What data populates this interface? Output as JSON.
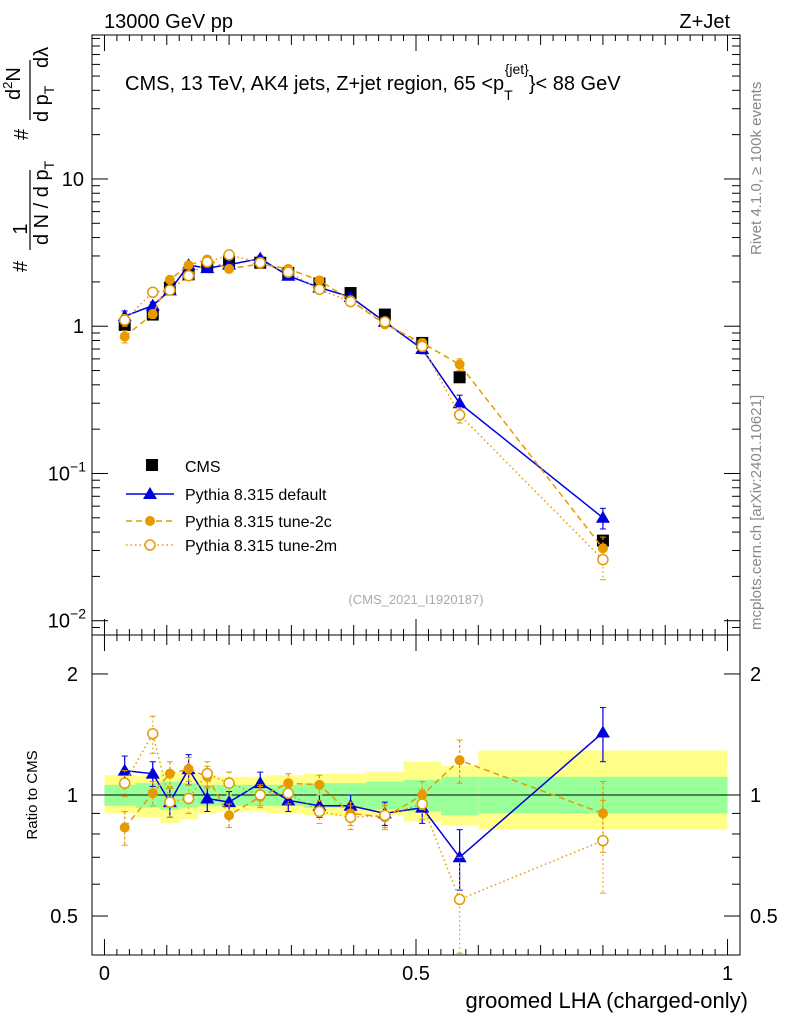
{
  "header": {
    "left": "13000 GeV pp",
    "right": "Z+Jet",
    "title_main": "CMS, 13 TeV, AK4 jets, Z+jet region, 65 <p",
    "title_sup": "{jet}",
    "title_sub": "T",
    "title_tail": "}< 88 GeV",
    "side_rivet": "Rivet 4.1.0, ≥ 100k events",
    "side_mcplots": "mcplots.cern.ch [arXiv:2401.10621]",
    "analysis_id": "(CMS_2021_I1920187)"
  },
  "ylabel_top": {
    "hash": "#",
    "frac_num": "1",
    "frac_den": "d N / d p",
    "frac_den_sub": "T",
    "hash2": "#",
    "dp": "d p",
    "dp_sub": "T",
    "d2n": "d",
    "d2n_sup": "2",
    "d2n_tail": "N",
    "dlambda": "dλ"
  },
  "chart_data": [
    {
      "type": "line",
      "panel": "main",
      "yscale": "log",
      "ylim": [
        0.008,
        95
      ],
      "xlim": [
        -0.02,
        1.02
      ],
      "y_tick_labels": [
        {
          "value": 0.01,
          "base": "10",
          "exp": "−2"
        },
        {
          "value": 0.1,
          "base": "10",
          "exp": "−1"
        },
        {
          "value": 1,
          "base": "1",
          "exp": ""
        },
        {
          "value": 10,
          "base": "10",
          "exp": ""
        }
      ],
      "x": [
        0.0325,
        0.0775,
        0.105,
        0.135,
        0.165,
        0.2,
        0.25,
        0.295,
        0.345,
        0.395,
        0.45,
        0.51,
        0.57,
        0.8
      ],
      "series": [
        {
          "name": "CMS",
          "style": "data",
          "color": "#000000",
          "values": [
            1.02,
            1.2,
            1.83,
            2.25,
            2.55,
            2.75,
            2.7,
            2.3,
            1.95,
            1.68,
            1.2,
            0.77,
            0.45,
            0.035
          ]
        },
        {
          "name": "Pythia 8.315 default",
          "style": "solid",
          "color": "#0000dd",
          "values": [
            1.17,
            1.38,
            1.75,
            2.6,
            2.48,
            2.62,
            2.88,
            2.2,
            1.83,
            1.58,
            1.07,
            0.7,
            0.3,
            0.05
          ],
          "errors": [
            0.1,
            0.08,
            0.1,
            0.12,
            0.1,
            0.1,
            0.12,
            0.1,
            0.08,
            0.06,
            0.05,
            0.05,
            0.04,
            0.008
          ]
        },
        {
          "name": "Pythia 8.315 tune-2c",
          "style": "dashed",
          "color": "#e69a00",
          "values": [
            0.85,
            1.21,
            2.07,
            2.6,
            2.84,
            2.45,
            2.65,
            2.45,
            2.05,
            1.5,
            1.03,
            0.77,
            0.55,
            0.031
          ],
          "errors": [
            0.08,
            0.08,
            0.1,
            0.1,
            0.1,
            0.1,
            0.1,
            0.1,
            0.08,
            0.06,
            0.05,
            0.05,
            0.05,
            0.006
          ]
        },
        {
          "name": "Pythia 8.315 tune-2m",
          "style": "dotted",
          "color": "#e69a00",
          "values": [
            1.1,
            1.7,
            1.76,
            2.2,
            2.73,
            3.05,
            2.7,
            2.33,
            1.78,
            1.47,
            1.07,
            0.73,
            0.25,
            0.026
          ],
          "errors": [
            0.1,
            0.12,
            0.1,
            0.1,
            0.12,
            0.12,
            0.1,
            0.1,
            0.08,
            0.06,
            0.05,
            0.05,
            0.03,
            0.007
          ]
        }
      ],
      "legend": [
        "CMS",
        "Pythia 8.315 default",
        "Pythia 8.315 tune-2c",
        "Pythia 8.315 tune-2m"
      ],
      "legend_placement": "bottom-left"
    },
    {
      "type": "line",
      "panel": "ratio",
      "ylabel": "Ratio to CMS",
      "xlabel": "groomed LHA (charged-only)",
      "yscale": "log",
      "ylim": [
        0.4,
        2.5
      ],
      "y_tick_labels": [
        {
          "value": 0.5,
          "label": "0.5"
        },
        {
          "value": 1,
          "label": "1"
        },
        {
          "value": 2,
          "label": "2"
        }
      ],
      "x_tick_labels": [
        {
          "value": 0,
          "label": "0"
        },
        {
          "value": 0.5,
          "label": "0.5"
        },
        {
          "value": 1,
          "label": "1"
        }
      ],
      "bands": {
        "edges": [
          0.0,
          0.05,
          0.09,
          0.12,
          0.15,
          0.18,
          0.22,
          0.26,
          0.32,
          0.37,
          0.42,
          0.48,
          0.54,
          0.6,
          1.0
        ],
        "inner": [
          [
            0.94,
            1.06
          ],
          [
            0.93,
            1.07
          ],
          [
            0.92,
            1.08
          ],
          [
            0.93,
            1.07
          ],
          [
            0.94,
            1.06
          ],
          [
            0.94,
            1.06
          ],
          [
            0.94,
            1.06
          ],
          [
            0.94,
            1.06
          ],
          [
            0.93,
            1.07
          ],
          [
            0.93,
            1.07
          ],
          [
            0.92,
            1.08
          ],
          [
            0.91,
            1.09
          ],
          [
            0.89,
            1.11
          ],
          [
            0.9,
            1.11
          ]
        ],
        "outer": [
          [
            0.9,
            1.12
          ],
          [
            0.88,
            1.12
          ],
          [
            0.85,
            1.14
          ],
          [
            0.87,
            1.13
          ],
          [
            0.9,
            1.12
          ],
          [
            0.91,
            1.11
          ],
          [
            0.91,
            1.11
          ],
          [
            0.9,
            1.12
          ],
          [
            0.89,
            1.13
          ],
          [
            0.89,
            1.13
          ],
          [
            0.89,
            1.14
          ],
          [
            0.86,
            1.21
          ],
          [
            0.84,
            1.18
          ],
          [
            0.82,
            1.29
          ]
        ],
        "inner_color": "#99ff99",
        "outer_color": "#ffff88"
      },
      "x": [
        0.0325,
        0.0775,
        0.105,
        0.135,
        0.165,
        0.2,
        0.25,
        0.295,
        0.345,
        0.395,
        0.45,
        0.51,
        0.57,
        0.8
      ],
      "series": [
        {
          "name": "Pythia 8.315 default",
          "style": "solid",
          "color": "#0000dd",
          "values": [
            1.15,
            1.13,
            0.96,
            1.16,
            0.98,
            0.96,
            1.07,
            0.97,
            0.94,
            0.94,
            0.9,
            0.93,
            0.7,
            1.43
          ],
          "errors": [
            0.1,
            0.08,
            0.08,
            0.1,
            0.07,
            0.06,
            0.07,
            0.06,
            0.06,
            0.06,
            0.06,
            0.08,
            0.12,
            0.22
          ]
        },
        {
          "name": "Pythia 8.315 tune-2c",
          "style": "dashed",
          "color": "#e69a00",
          "values": [
            0.83,
            1.01,
            1.13,
            1.16,
            1.11,
            0.89,
            0.99,
            1.07,
            1.06,
            0.9,
            0.88,
            1.0,
            1.22,
            0.9
          ],
          "errors": [
            0.08,
            0.07,
            0.08,
            0.08,
            0.07,
            0.06,
            0.06,
            0.06,
            0.06,
            0.06,
            0.06,
            0.08,
            0.15,
            0.18
          ]
        },
        {
          "name": "Pythia 8.315 tune-2m",
          "style": "dotted",
          "color": "#e69a00",
          "values": [
            1.07,
            1.42,
            0.96,
            0.98,
            1.13,
            1.07,
            1.0,
            1.01,
            0.91,
            0.88,
            0.89,
            0.95,
            0.55,
            0.77
          ],
          "errors": [
            0.08,
            0.15,
            0.08,
            0.08,
            0.08,
            0.07,
            0.06,
            0.06,
            0.06,
            0.06,
            0.06,
            0.08,
            0.15,
            0.2
          ]
        }
      ]
    }
  ]
}
